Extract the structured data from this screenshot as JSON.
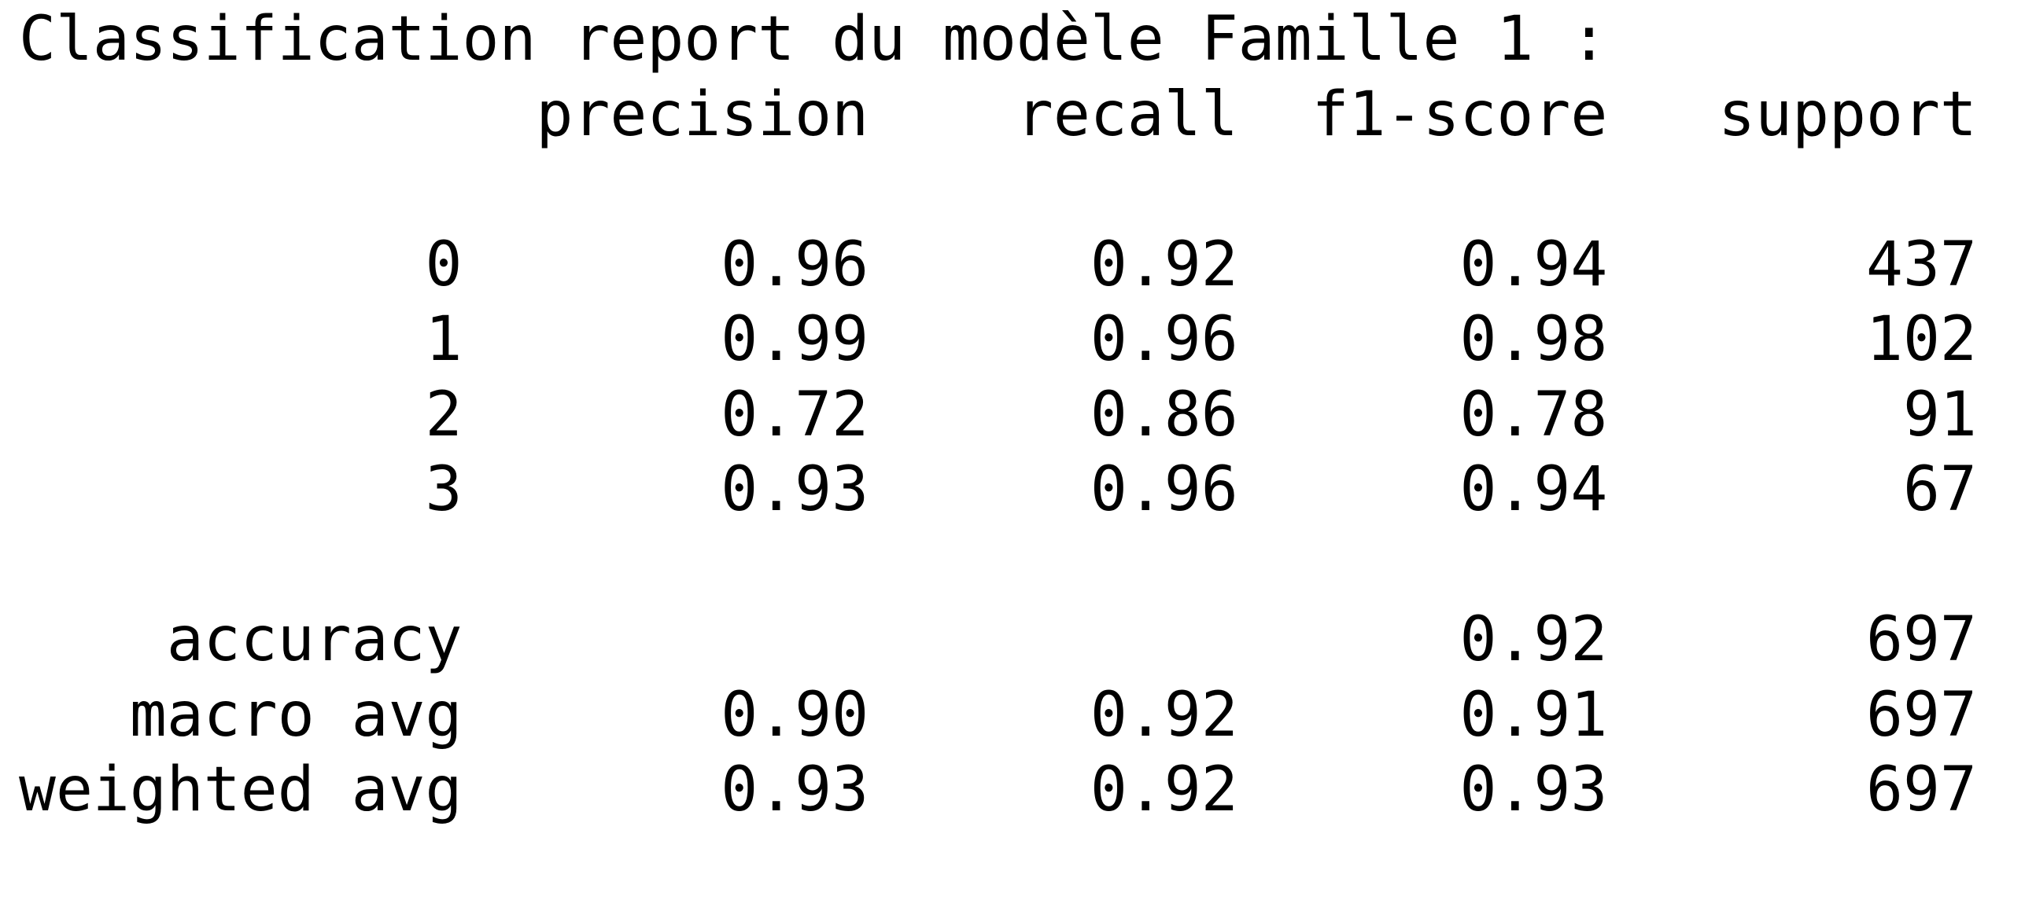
{
  "report": {
    "title": "Classification report du modèle Famille 1 :",
    "text": "              precision    recall  f1-score   support\n\n           0       0.96      0.92      0.94       437\n           1       0.99      0.96      0.98       102\n           2       0.72      0.86      0.78        91\n           3       0.93      0.96      0.94        67\n\n    accuracy                           0.92       697\n   macro avg       0.90      0.92      0.91       697\nweighted avg       0.93      0.92      0.93       697"
  }
}
